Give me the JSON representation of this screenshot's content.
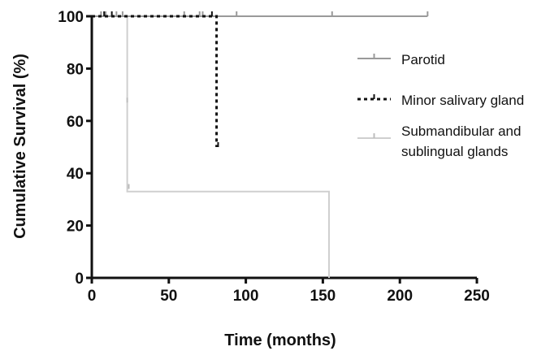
{
  "chart_data": {
    "type": "line",
    "subtype": "kaplan-meier step",
    "xlabel": "Time (months)",
    "ylabel": "Cumulative Survival (%)",
    "xlim": [
      0,
      250
    ],
    "ylim": [
      0,
      100
    ],
    "xticks": [
      0,
      50,
      100,
      150,
      200,
      250
    ],
    "yticks": [
      0,
      20,
      40,
      60,
      80,
      100
    ],
    "grid": false,
    "legend_position": "right",
    "series": [
      {
        "name": "Parotid",
        "style": "solid",
        "color": "#9a9a9a",
        "steps": [
          [
            0,
            100
          ],
          [
            218,
            100
          ]
        ],
        "censored": [
          [
            6,
            100
          ],
          [
            9,
            100
          ],
          [
            16,
            100
          ],
          [
            20,
            100
          ],
          [
            60,
            100
          ],
          [
            70,
            100
          ],
          [
            72,
            100
          ],
          [
            94,
            100
          ],
          [
            156,
            100
          ],
          [
            218,
            100
          ]
        ]
      },
      {
        "name": "Minor salivary gland",
        "style": "dotted",
        "color": "#111111",
        "steps": [
          [
            0,
            100
          ],
          [
            81,
            100
          ],
          [
            81,
            50
          ]
        ],
        "censored": [
          [
            8,
            100
          ],
          [
            13,
            100
          ],
          [
            78,
            100
          ],
          [
            82,
            50
          ]
        ]
      },
      {
        "name": "Submandibular and sublingual glands",
        "style": "solid",
        "color": "#cfcfcf",
        "steps": [
          [
            0,
            100
          ],
          [
            23,
            100
          ],
          [
            23,
            33
          ],
          [
            154,
            33
          ],
          [
            154,
            0
          ]
        ],
        "censored": [
          [
            23,
            67
          ],
          [
            24,
            34
          ]
        ]
      }
    ]
  }
}
